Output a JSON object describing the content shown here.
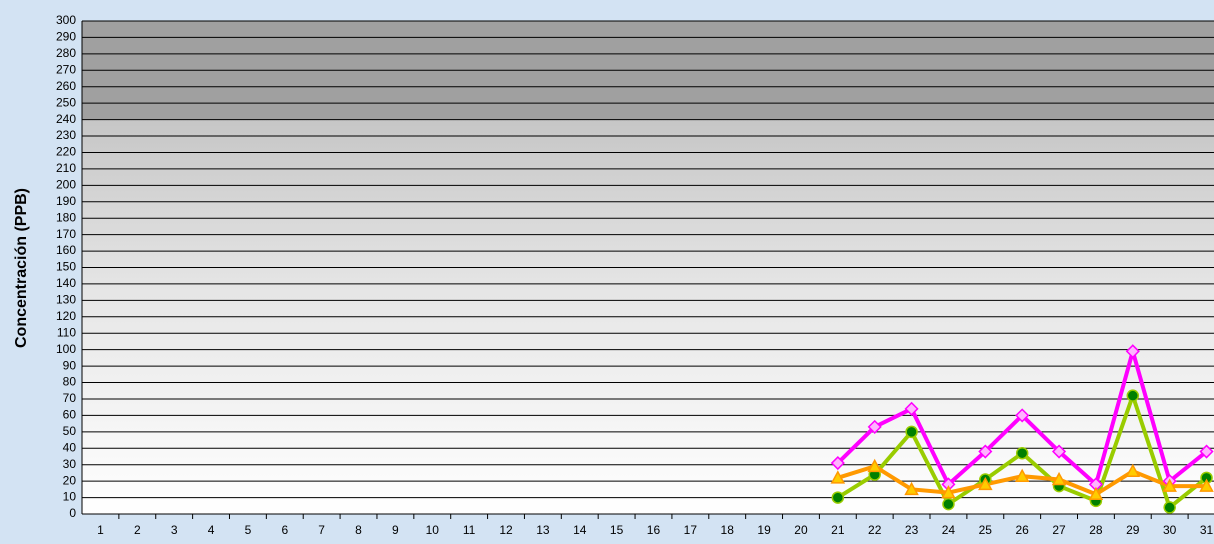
{
  "chart_data": {
    "type": "line",
    "y_label": "Concentración  (PPB)",
    "categories": [
      "1",
      "2",
      "3",
      "4",
      "5",
      "6",
      "7",
      "8",
      "9",
      "10",
      "11",
      "12",
      "13",
      "14",
      "15",
      "16",
      "17",
      "18",
      "19",
      "20",
      "21",
      "22",
      "23",
      "24",
      "25",
      "26",
      "27",
      "28",
      "29",
      "30",
      "31"
    ],
    "series": [
      {
        "color": "#ff00ff",
        "marker": "diamond",
        "values": [
          null,
          null,
          null,
          null,
          null,
          null,
          null,
          null,
          null,
          null,
          null,
          null,
          null,
          null,
          null,
          null,
          null,
          null,
          null,
          null,
          31,
          53,
          64,
          18,
          38,
          60,
          38,
          18,
          99,
          20,
          38
        ]
      },
      {
        "color": "#99cc00",
        "marker": "circle",
        "values": [
          null,
          null,
          null,
          null,
          null,
          null,
          null,
          null,
          null,
          null,
          null,
          null,
          null,
          null,
          null,
          null,
          null,
          null,
          null,
          null,
          10,
          24,
          50,
          6,
          21,
          37,
          17,
          8,
          72,
          4,
          22
        ]
      },
      {
        "color": "#ff9900",
        "marker": "triangle",
        "values": [
          null,
          null,
          null,
          null,
          null,
          null,
          null,
          null,
          null,
          null,
          null,
          null,
          null,
          null,
          null,
          null,
          null,
          null,
          null,
          null,
          22,
          29,
          15,
          13,
          18,
          23,
          21,
          12,
          26,
          17,
          17
        ]
      }
    ],
    "shaded_range": [
      240,
      300
    ],
    "ylim": [
      0,
      300
    ],
    "yticks": [
      0,
      10,
      20,
      30,
      40,
      50,
      60,
      70,
      80,
      90,
      100,
      110,
      120,
      130,
      140,
      150,
      160,
      170,
      180,
      190,
      200,
      210,
      220,
      230,
      240,
      250,
      260,
      270,
      280,
      290,
      300
    ],
    "grid": true
  }
}
